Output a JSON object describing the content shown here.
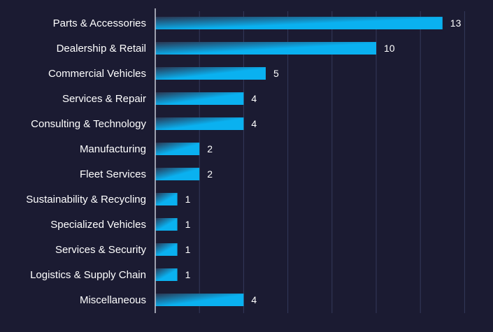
{
  "chart_data": {
    "type": "bar",
    "orientation": "horizontal",
    "categories": [
      "Parts & Accessories",
      "Dealership & Retail",
      "Commercial Vehicles",
      "Services & Repair",
      "Consulting & Technology",
      "Manufacturing",
      "Fleet Services",
      "Sustainability & Recycling",
      "Specialized Vehicles",
      "Services & Security",
      "Logistics & Supply Chain",
      "Miscellaneous"
    ],
    "values": [
      13,
      10,
      5,
      4,
      4,
      2,
      2,
      1,
      1,
      1,
      1,
      4
    ],
    "data_labels": [
      "13",
      "10",
      "5",
      "4",
      "4",
      "2",
      "2",
      "1",
      "1",
      "1",
      "1",
      "4"
    ],
    "title": "",
    "xlabel": "",
    "ylabel": "",
    "xlim": [
      0,
      14
    ],
    "grid": "vertical",
    "legend": "none",
    "colors": {
      "background": "#1b1b32",
      "bar_start": "#2a3550",
      "bar_end": "#0ab1f0",
      "text": "#ffffff",
      "gridline": "#34395a",
      "axis": "#c9ccd6"
    }
  }
}
